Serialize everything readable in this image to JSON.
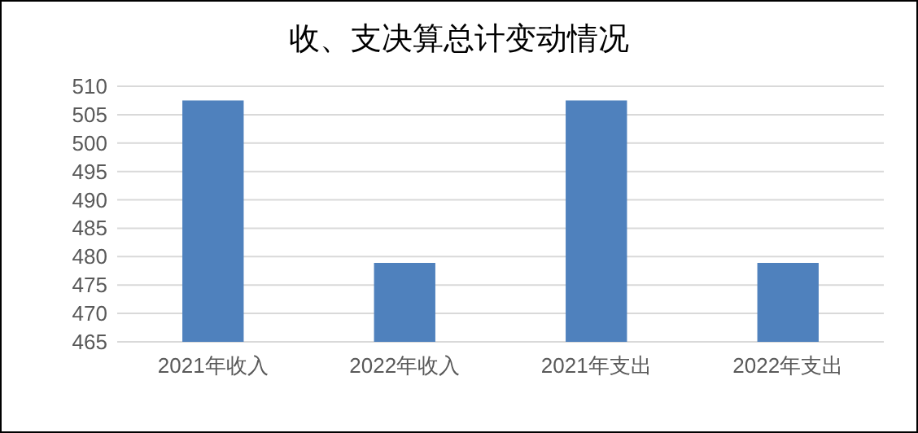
{
  "chart_data": {
    "type": "bar",
    "title": "收、支决算总计变动情况",
    "categories": [
      "2021年收入",
      "2022年收入",
      "2021年支出",
      "2022年支出"
    ],
    "values": [
      507.5,
      478.9,
      507.5,
      478.9
    ],
    "color": "#4f81bd",
    "ylim": [
      465,
      510
    ],
    "yticks": [
      465,
      470,
      475,
      480,
      485,
      490,
      495,
      500,
      505,
      510
    ],
    "grid": "y"
  }
}
